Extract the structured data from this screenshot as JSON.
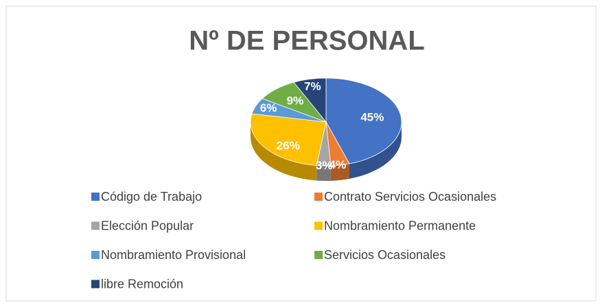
{
  "chart_data": {
    "type": "pie",
    "title": "Nº DE PERSONAL",
    "categories": [
      "Código de Trabajo",
      "Contrato Servicios Ocasionales",
      "Elección Popular",
      "Nombramiento Permanente",
      "Nombramiento Provisional",
      "Servicios Ocasionales",
      "libre Remoción"
    ],
    "values": [
      45,
      4,
      3,
      26,
      6,
      9,
      7
    ],
    "value_labels": [
      "45%",
      "4%",
      "3%",
      "26%",
      "6%",
      "9%",
      "7%"
    ],
    "colors": [
      "#4472c4",
      "#ed7d31",
      "#a5a5a5",
      "#ffc000",
      "#5b9bd5",
      "#70ad47",
      "#264478"
    ],
    "legend": "bottom"
  }
}
